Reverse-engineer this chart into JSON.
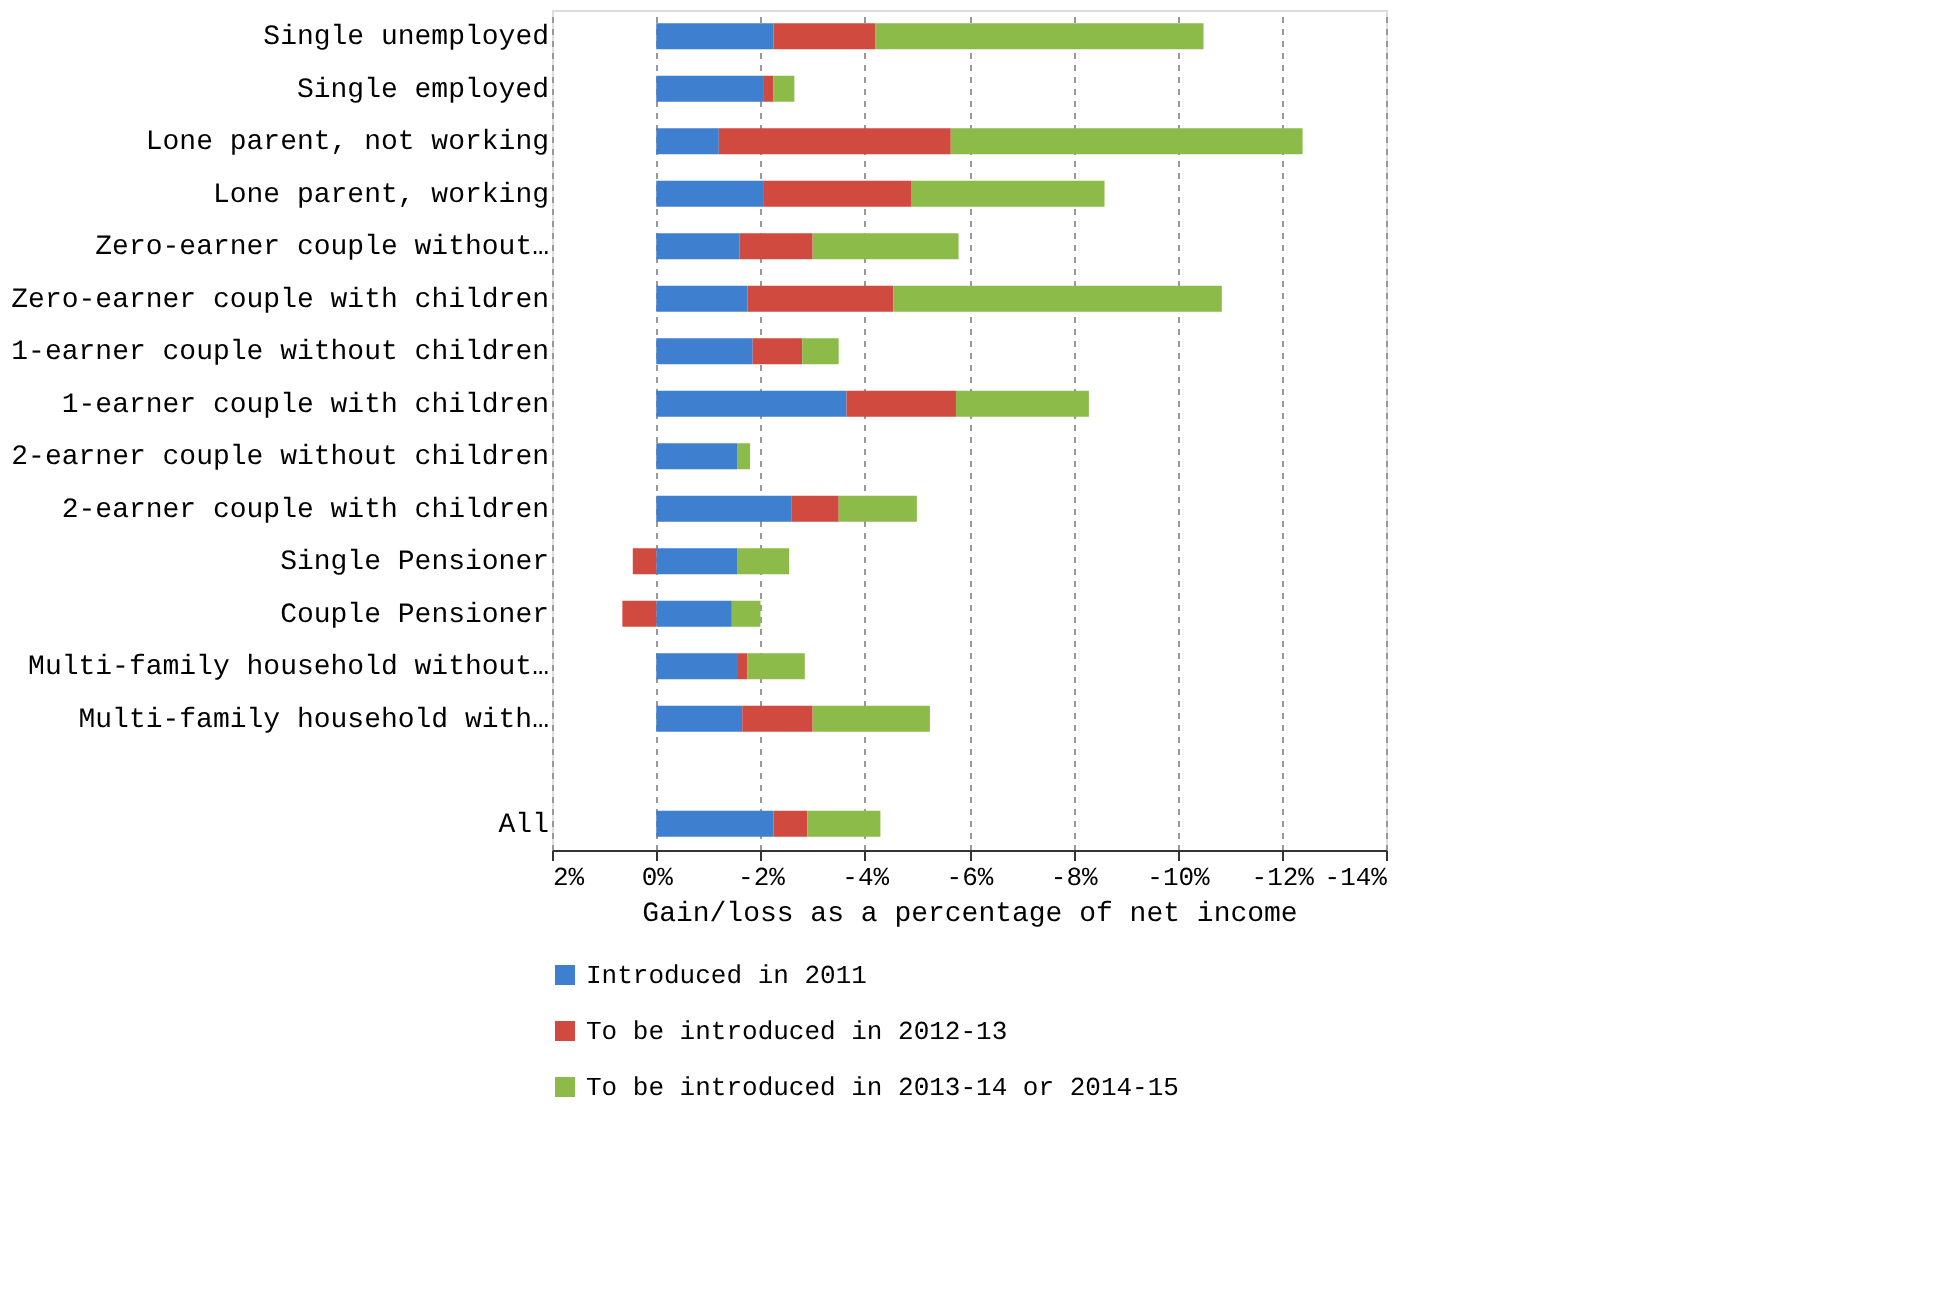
{
  "chart_data": {
    "type": "bar",
    "orientation": "horizontal",
    "stacked": true,
    "categories": [
      "Single unemployed",
      "Single employed",
      "Lone parent, not working",
      "Lone parent, working",
      "Zero-earner couple without…",
      "Zero-earner couple with children",
      "1-earner couple without children",
      "1-earner couple with children",
      "2-earner couple without children",
      "2-earner couple with children",
      "Single Pensioner",
      "Couple Pensioner",
      "Multi-family household without…",
      "Multi-family household with…",
      null,
      "All"
    ],
    "series": [
      {
        "name": "Introduced in 2011",
        "color": "#3f7fcf",
        "values": [
          -2.25,
          -2.05,
          -1.2,
          -2.05,
          -1.6,
          -1.75,
          -1.85,
          -3.65,
          -1.55,
          -2.6,
          -1.55,
          -1.45,
          -1.55,
          -1.65,
          null,
          -2.25
        ]
      },
      {
        "name": "To be introduced in 2012-13",
        "color": "#d04a3f",
        "values": [
          -1.95,
          -0.2,
          -4.45,
          -2.85,
          -1.4,
          -2.8,
          -0.95,
          -2.1,
          0,
          -0.9,
          0.45,
          0.65,
          -0.2,
          -1.35,
          null,
          -0.65
        ]
      },
      {
        "name": "To be introduced in 2013-14 or 2014-15",
        "color": "#8dbb4a",
        "values": [
          -6.3,
          -0.4,
          -6.75,
          -3.7,
          -2.8,
          -6.3,
          -0.7,
          -2.55,
          -0.25,
          -1.5,
          -1.0,
          -0.55,
          -1.1,
          -2.25,
          null,
          -1.4
        ]
      }
    ],
    "xlim": [
      2,
      -14
    ],
    "xticks": [
      {
        "value": 2,
        "label": "2%"
      },
      {
        "value": 0,
        "label": "0%"
      },
      {
        "value": -2,
        "label": "-2%"
      },
      {
        "value": -4,
        "label": "-4%"
      },
      {
        "value": -6,
        "label": "-6%"
      },
      {
        "value": -8,
        "label": "-8%"
      },
      {
        "value": -10,
        "label": "-10%"
      },
      {
        "value": -12,
        "label": "-12%"
      },
      {
        "value": -14,
        "label": "-14%"
      }
    ],
    "xlabel": "Gain/loss as a percentage of net income",
    "grid": "x",
    "legend": "bottom"
  }
}
